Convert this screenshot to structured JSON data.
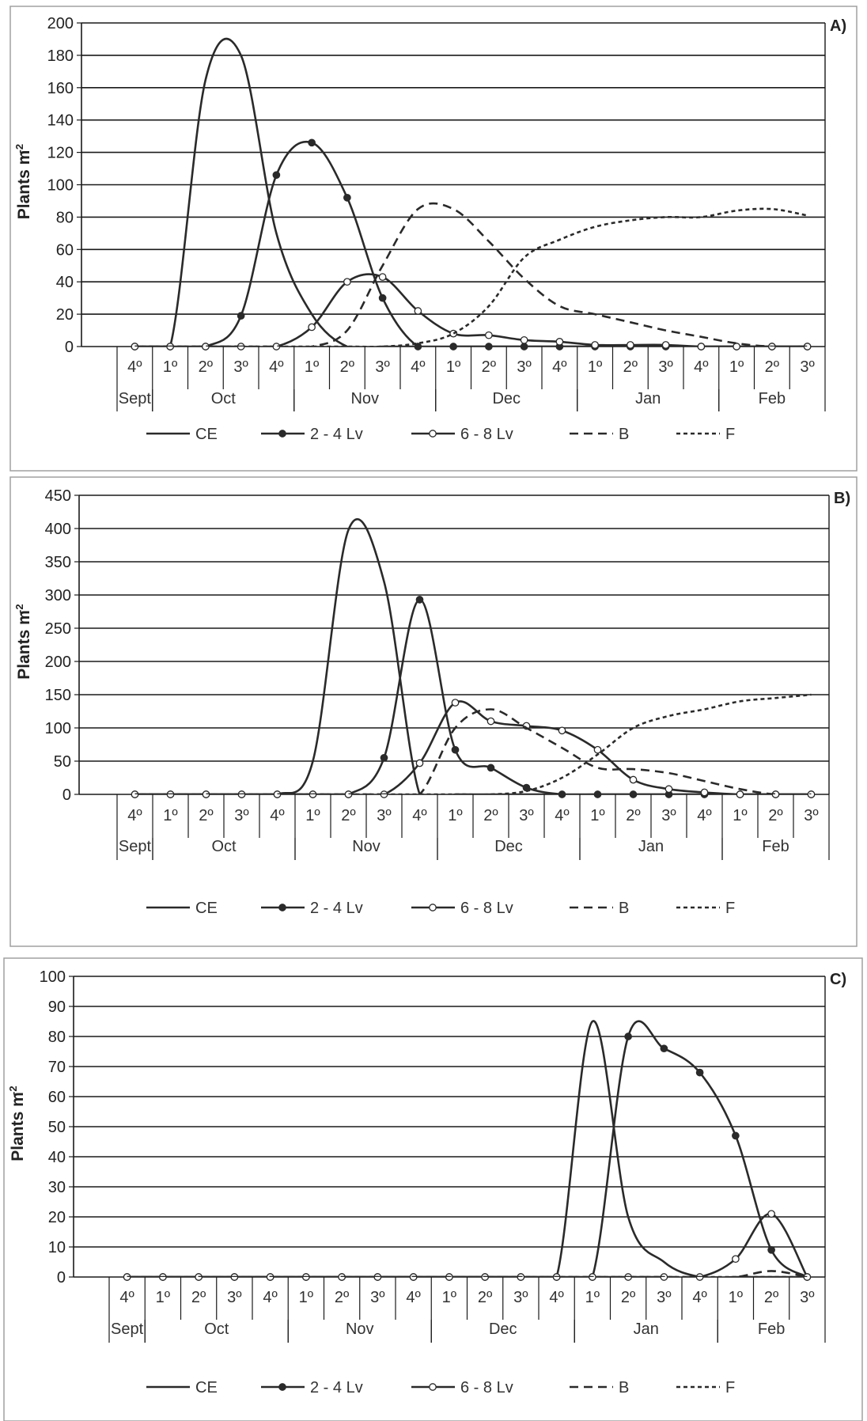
{
  "legend": [
    {
      "label": "CE",
      "style": "solid"
    },
    {
      "label": "2 - 4 Lv",
      "style": "filled-marker"
    },
    {
      "label": "6 - 8 Lv",
      "style": "open-marker"
    },
    {
      "label": "B",
      "style": "dashed"
    },
    {
      "label": "F",
      "style": "dotted"
    }
  ],
  "weeks": [
    "4º",
    "1º",
    "2º",
    "3º",
    "4º",
    "1º",
    "2º",
    "3º",
    "4º",
    "1º",
    "2º",
    "3º",
    "4º",
    "1º",
    "2º",
    "3º",
    "4º",
    "1º",
    "2º",
    "3º"
  ],
  "months": [
    {
      "label": "Sept",
      "start": 0,
      "end": 1
    },
    {
      "label": "Oct",
      "start": 1,
      "end": 5
    },
    {
      "label": "Nov",
      "start": 5,
      "end": 9
    },
    {
      "label": "Dec",
      "start": 9,
      "end": 13
    },
    {
      "label": "Jan",
      "start": 13,
      "end": 17
    },
    {
      "label": "Feb",
      "start": 17,
      "end": 20
    }
  ],
  "colors": {
    "line": "#2a2a2a",
    "grid": "#1a1a1a",
    "frame": "#a0a0a0",
    "marker_open": "#ffffff"
  },
  "chart_data": [
    {
      "type": "line",
      "panel_label": "A)",
      "ylabel": "Plants m-2",
      "ylim": [
        0,
        200
      ],
      "yticks": [
        0,
        20,
        40,
        60,
        80,
        100,
        120,
        140,
        160,
        180,
        200
      ],
      "series": [
        {
          "name": "CE",
          "style": "solid",
          "values": [
            0,
            0,
            165,
            180,
            70,
            20,
            0,
            0,
            0,
            0,
            0,
            0,
            0,
            0,
            0,
            0,
            0,
            0,
            0,
            0
          ]
        },
        {
          "name": "2 - 4 Lv",
          "style": "filled",
          "values": [
            0,
            0,
            0,
            19,
            106,
            126,
            92,
            30,
            0,
            0,
            0,
            0,
            0,
            0,
            0,
            0,
            0,
            0,
            0,
            0
          ]
        },
        {
          "name": "6 - 8 Lv",
          "style": "open",
          "values": [
            0,
            0,
            0,
            0,
            0,
            12,
            40,
            43,
            22,
            8,
            7,
            4,
            3,
            1,
            1,
            1,
            0,
            0,
            0,
            0
          ]
        },
        {
          "name": "B",
          "style": "dashed",
          "values": [
            0,
            0,
            0,
            0,
            0,
            0,
            10,
            50,
            85,
            85,
            65,
            42,
            25,
            20,
            15,
            10,
            6,
            2,
            0,
            0
          ]
        },
        {
          "name": "F",
          "style": "dotted",
          "values": [
            0,
            0,
            0,
            0,
            0,
            0,
            0,
            0,
            2,
            8,
            25,
            55,
            66,
            74,
            78,
            80,
            80,
            84,
            85,
            81
          ]
        }
      ]
    },
    {
      "type": "line",
      "panel_label": "B)",
      "ylabel": "Plants m-2",
      "ylim": [
        0,
        450
      ],
      "yticks": [
        0,
        50,
        100,
        150,
        200,
        250,
        300,
        350,
        400,
        450
      ],
      "series": [
        {
          "name": "CE",
          "style": "solid",
          "values": [
            0,
            0,
            0,
            0,
            0,
            50,
            398,
            320,
            0,
            0,
            0,
            0,
            0,
            0,
            0,
            0,
            0,
            0,
            0,
            0
          ]
        },
        {
          "name": "2 - 4 Lv",
          "style": "filled",
          "values": [
            0,
            0,
            0,
            0,
            0,
            0,
            0,
            55,
            293,
            67,
            40,
            10,
            0,
            0,
            0,
            0,
            0,
            0,
            0,
            0
          ]
        },
        {
          "name": "6 - 8 Lv",
          "style": "open",
          "values": [
            0,
            0,
            0,
            0,
            0,
            0,
            0,
            0,
            47,
            138,
            110,
            103,
            96,
            67,
            22,
            8,
            3,
            0,
            0,
            0
          ]
        },
        {
          "name": "B",
          "style": "dashed",
          "values": [
            0,
            0,
            0,
            0,
            0,
            0,
            0,
            0,
            0,
            100,
            128,
            100,
            70,
            40,
            38,
            32,
            20,
            8,
            0,
            0
          ]
        },
        {
          "name": "F",
          "style": "dotted",
          "values": [
            0,
            0,
            0,
            0,
            0,
            0,
            0,
            0,
            0,
            0,
            0,
            5,
            25,
            60,
            100,
            118,
            128,
            140,
            145,
            150
          ]
        }
      ]
    },
    {
      "type": "line",
      "panel_label": "C)",
      "ylabel": "Plants m-2",
      "ylim": [
        0,
        100
      ],
      "yticks": [
        0,
        10,
        20,
        30,
        40,
        50,
        60,
        70,
        80,
        90,
        100
      ],
      "series": [
        {
          "name": "CE",
          "style": "solid",
          "values": [
            0,
            0,
            0,
            0,
            0,
            0,
            0,
            0,
            0,
            0,
            0,
            0,
            0,
            85,
            20,
            5,
            0,
            0,
            0,
            0
          ]
        },
        {
          "name": "2 - 4 Lv",
          "style": "filled",
          "values": [
            0,
            0,
            0,
            0,
            0,
            0,
            0,
            0,
            0,
            0,
            0,
            0,
            0,
            0,
            80,
            76,
            68,
            47,
            9,
            0
          ]
        },
        {
          "name": "6 - 8 Lv",
          "style": "open",
          "values": [
            0,
            0,
            0,
            0,
            0,
            0,
            0,
            0,
            0,
            0,
            0,
            0,
            0,
            0,
            0,
            0,
            0,
            6,
            21,
            0
          ]
        },
        {
          "name": "B",
          "style": "dashed",
          "values": [
            0,
            0,
            0,
            0,
            0,
            0,
            0,
            0,
            0,
            0,
            0,
            0,
            0,
            0,
            0,
            0,
            0,
            0,
            2,
            0
          ]
        },
        {
          "name": "F",
          "style": "dotted",
          "values": [
            0,
            0,
            0,
            0,
            0,
            0,
            0,
            0,
            0,
            0,
            0,
            0,
            0,
            0,
            0,
            0,
            0,
            0,
            0,
            0
          ]
        }
      ]
    }
  ]
}
